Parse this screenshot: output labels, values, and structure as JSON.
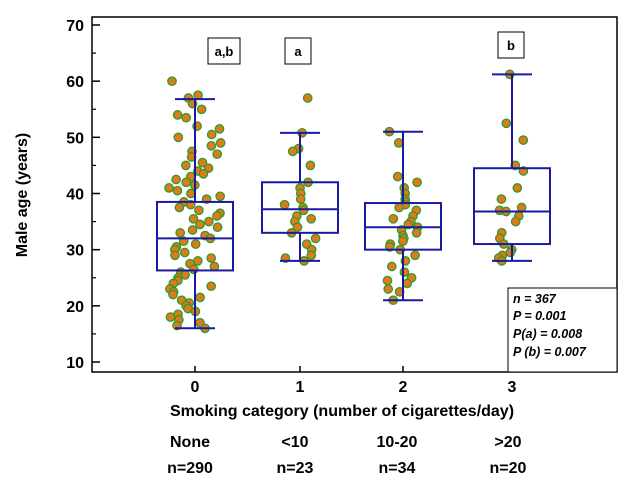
{
  "chart_data": {
    "type": "box-scatter",
    "ylabel": "Male age (years)",
    "xlabel": "Smoking category (number of cigarettes/day)",
    "ylim": [
      10,
      70
    ],
    "yticks": [
      10,
      20,
      30,
      40,
      50,
      60,
      70
    ],
    "categories": [
      "0",
      "1",
      "2",
      "3"
    ],
    "category_desc": [
      "None",
      "<10",
      "10-20",
      ">20"
    ],
    "counts": [
      "n=290",
      "n=23",
      "n=34",
      "n=20"
    ],
    "colors": {
      "box": "#1a1aa0",
      "point_fill": "#e07a1a",
      "point_edge": "#2f9a2f"
    },
    "boxes": [
      {
        "category": "0",
        "whisker_low": 16,
        "q1": 26.3,
        "median": 32,
        "q3": 38.5,
        "whisker_high": 56.8,
        "label": "a,b"
      },
      {
        "category": "1",
        "whisker_low": 28,
        "q1": 33,
        "median": 37.2,
        "q3": 42,
        "whisker_high": 50.8,
        "label": "a"
      },
      {
        "category": "2",
        "whisker_low": 21,
        "q1": 30,
        "median": 34,
        "q3": 38.3,
        "whisker_high": 51,
        "label": ""
      },
      {
        "category": "3",
        "whisker_low": 28,
        "q1": 31,
        "median": 36.8,
        "q3": 44.5,
        "whisker_high": 61.2,
        "label": "b"
      }
    ],
    "points": [
      {
        "category": "0",
        "values": [
          64.5,
          60,
          57.5,
          57,
          56,
          55,
          54,
          53.5,
          52,
          51.5,
          50.5,
          50,
          49,
          48.5,
          47.5,
          47,
          46.5,
          45.5,
          45,
          44.5,
          44,
          43.5,
          43,
          42.5,
          42,
          41.5,
          41,
          40.5,
          40,
          39.5,
          39,
          38.5,
          38,
          37.5,
          37,
          36.5,
          36,
          35.5,
          35,
          34.5,
          34,
          33.5,
          33,
          32.5,
          32,
          31.5,
          31,
          30.5,
          30,
          29.5,
          29,
          28.5,
          28,
          27.5,
          27,
          26.5,
          26,
          25.5,
          25,
          24.5,
          24,
          23.5,
          23,
          22.5,
          22,
          21.5,
          21,
          20.5,
          20,
          19.5,
          19,
          18.5,
          18,
          17.5,
          17,
          16.5,
          16
        ]
      },
      {
        "category": "1",
        "values": [
          57,
          50.8,
          48,
          47.5,
          45,
          42,
          41,
          40,
          39,
          38,
          37.5,
          37,
          36,
          35.5,
          35,
          34,
          33,
          32,
          31,
          30,
          29,
          28.5,
          28
        ]
      },
      {
        "category": "2",
        "values": [
          51,
          49,
          43,
          42,
          41,
          40,
          39,
          38.5,
          38,
          37.5,
          37,
          36,
          35.5,
          35,
          34.5,
          34,
          33.5,
          33,
          32.5,
          32,
          31.5,
          31,
          30.5,
          30,
          29,
          28,
          27,
          26,
          25,
          24.5,
          24,
          23,
          22.5,
          21
        ]
      },
      {
        "category": "3",
        "values": [
          61.2,
          52.5,
          49.5,
          45,
          44,
          41,
          39,
          37.5,
          37,
          36.8,
          36,
          35,
          33,
          32,
          31,
          30,
          29.5,
          29,
          28.5,
          28
        ]
      }
    ],
    "stats": [
      "n = 367",
      "P = 0.001",
      "P(a) = 0.008",
      "P (b) = 0.007"
    ]
  }
}
